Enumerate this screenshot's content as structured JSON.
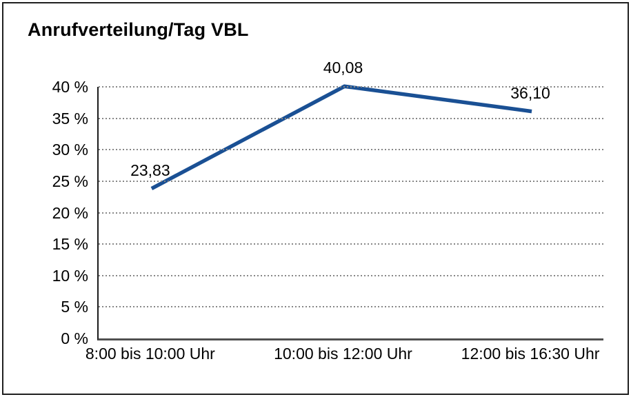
{
  "chart_data": {
    "type": "line",
    "title": "Anrufverteilung/Tag VBL",
    "categories": [
      "8:00 bis 10:00 Uhr",
      "10:00 bis 12:00 Uhr",
      "12:00 bis 16:30 Uhr"
    ],
    "values": [
      23.83,
      40.08,
      36.1
    ],
    "data_labels": [
      "23,83",
      "40,08",
      "36,10"
    ],
    "ytick_labels": [
      "0 %",
      "5 %",
      "10 %",
      "15 %",
      "20 %",
      "25 %",
      "30 %",
      "35 %",
      "40 %"
    ],
    "ytick_step": 5,
    "ylim": [
      0,
      40
    ],
    "xlabel": "",
    "ylabel": "",
    "grid": "horizontal-dotted",
    "legend": "none",
    "line_color": "#1a5094",
    "grid_color": "#868686",
    "text_color": "#000000"
  }
}
